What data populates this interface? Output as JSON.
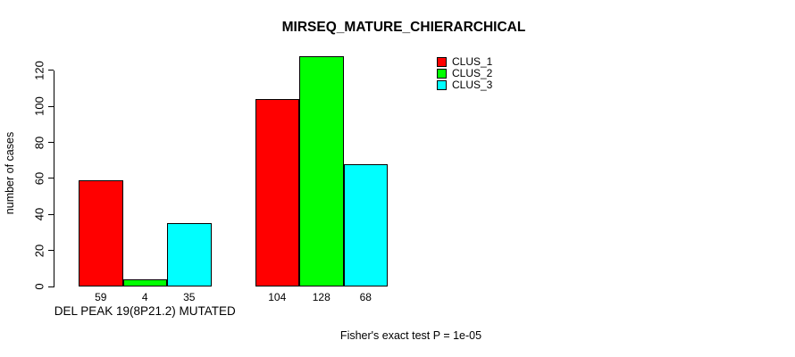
{
  "chart_data": {
    "type": "bar",
    "title": "MIRSEQ_MATURE_CHIERARCHICAL",
    "ylabel": "number of cases",
    "annotation": "Fisher's exact test P = 1e-05",
    "categories": [
      "DEL PEAK 19(8P21.2) MUTATED",
      ""
    ],
    "series": [
      {
        "name": "CLUS_1",
        "color": "#ff0000",
        "values": [
          59,
          104
        ]
      },
      {
        "name": "CLUS_2",
        "color": "#00ff00",
        "values": [
          4,
          128
        ]
      },
      {
        "name": "CLUS_3",
        "color": "#00ffff",
        "values": [
          35,
          68
        ]
      }
    ],
    "yticks": [
      0,
      20,
      40,
      60,
      80,
      100,
      120
    ],
    "ylim": [
      0,
      130
    ],
    "bar_value_labels": true,
    "bar_border_color": "#000000",
    "axis_color": "#000000",
    "text_color": "#000000",
    "background_color": "#ffffff",
    "legend_position": "top-right",
    "grid": false
  }
}
